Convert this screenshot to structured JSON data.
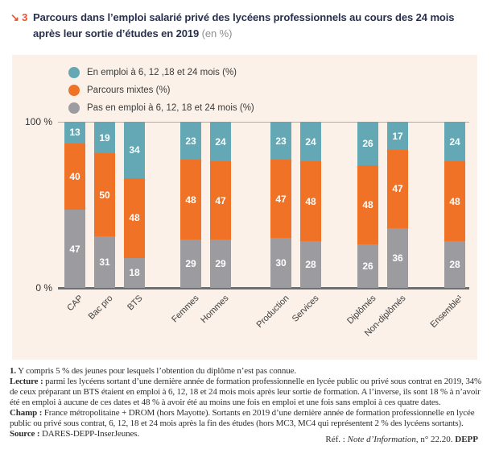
{
  "title": {
    "marker": "↘ 3",
    "text": "Parcours dans l’emploi salarié privé des lycéens professionnels au cours des 24 mois après leur sortie d’études en 2019 ",
    "suffix": "(en %)"
  },
  "legend": [
    {
      "label": "En emploi à 6, 12 ,18 et 24 mois (%)",
      "color": "#63a8b4"
    },
    {
      "label": "Parcours mixtes (%)",
      "color": "#f07226"
    },
    {
      "label": "Pas en emploi à 6, 12, 18 et 24 mois (%)",
      "color": "#9c9ca0"
    }
  ],
  "axis": {
    "y_top": "100 %",
    "y_bottom": "0 %"
  },
  "chart_data": {
    "type": "bar",
    "stacked": true,
    "title": "Parcours dans l’emploi salarié privé des lycéens professionnels au cours des 24 mois après leur sortie d’études en 2019 (en %)",
    "xlabel": "",
    "ylabel": "%",
    "ylim": [
      0,
      100
    ],
    "grid": false,
    "legend_position": "top-left",
    "categories": [
      "CAP",
      "Bac pro",
      "BTS",
      "Femmes",
      "Hommes",
      "Production",
      "Services",
      "Diplômés",
      "Non-diplômés",
      "Ensemble¹"
    ],
    "category_groups": [
      [
        "CAP",
        "Bac pro",
        "BTS"
      ],
      [
        "Femmes",
        "Hommes"
      ],
      [
        "Production",
        "Services"
      ],
      [
        "Diplômés",
        "Non-diplômés"
      ],
      [
        "Ensemble¹"
      ]
    ],
    "series": [
      {
        "name": "Pas en emploi à 6, 12, 18 et 24 mois (%)",
        "color": "#9c9ca0",
        "values": [
          47,
          31,
          18,
          29,
          29,
          30,
          28,
          26,
          36,
          28
        ]
      },
      {
        "name": "Parcours mixtes (%)",
        "color": "#f07226",
        "values": [
          40,
          50,
          48,
          48,
          47,
          47,
          48,
          48,
          47,
          48
        ]
      },
      {
        "name": "En emploi à 6, 12 ,18 et 24 mois (%)",
        "color": "#63a8b4",
        "values": [
          13,
          19,
          34,
          23,
          24,
          23,
          24,
          26,
          17,
          24
        ]
      }
    ]
  },
  "footnotes": [
    {
      "label": "1.",
      "text": "Y compris 5 % des jeunes pour lesquels l’obtention du diplôme n’est pas connue."
    },
    {
      "label": "Lecture :",
      "text": "parmi les lycéens sortant d’une dernière année de formation professionnelle en lycée public ou privé sous contrat en 2019, 34% de ceux préparant un BTS étaient en emploi à 6, 12, 18 et 24 mois mois après leur sortie de formation. A l’inverse, ils sont 18 % à n’avoir été en emploi à aucune de ces dates et 48 % à avoir été au moins une fois en emploi et une fois sans emploi à ces quatre dates."
    },
    {
      "label": "Champ :",
      "text": "France métropolitaine + DROM (hors Mayotte). Sortants en 2019 d’une dernière année de formation professionnelle en lycée public ou privé sous contrat, 6, 12, 18 et 24 mois après la fin des études (hors MC3, MC4 qui représentent 2 % des lycéens sortants)."
    },
    {
      "label": "Source :",
      "text": "DARES-DEPP-InserJeunes."
    }
  ],
  "reference": {
    "prefix": "Réf. : ",
    "title": "Note d’Information",
    "middle": ", n° 22.20. ",
    "suffix": "DEPP"
  }
}
